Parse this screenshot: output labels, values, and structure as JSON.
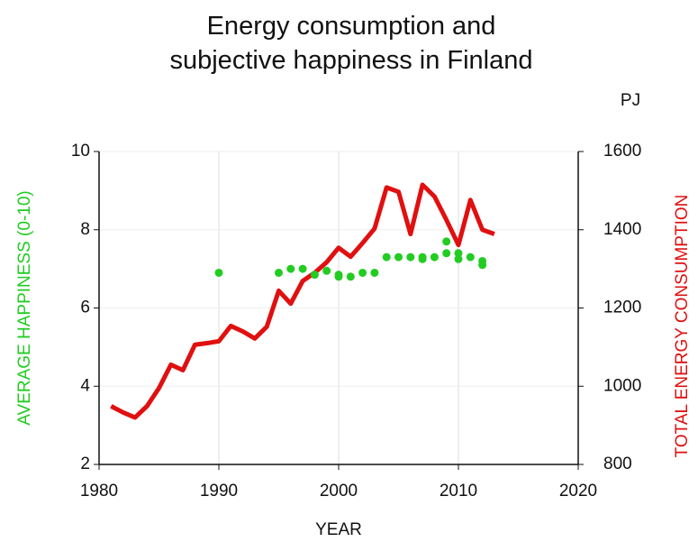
{
  "chart_data": {
    "type": "line_scatter",
    "title": "Energy consumption and subjective happiness in Finland",
    "xlabel": "YEAR",
    "ylabel": "AVERAGE HAPPINESS (0-10)",
    "y2label": "TOTAL ENERGY CONSUMPTION",
    "y2unit": "PJ",
    "xlim": [
      1980,
      2020
    ],
    "xticks": [
      1980,
      1990,
      2000,
      2010,
      2020
    ],
    "ylim": [
      2,
      10
    ],
    "yticks": [
      2,
      4,
      6,
      8,
      10
    ],
    "y2lim": [
      800,
      1600
    ],
    "y2ticks": [
      800,
      1000,
      1200,
      1400,
      1600
    ],
    "grid": true,
    "series": [
      {
        "name": "TOTAL ENERGY CONSUMPTION",
        "type": "line",
        "axis": "y2",
        "color": "#e01010",
        "x": [
          1981,
          1982,
          1983,
          1984,
          1985,
          1986,
          1987,
          1988,
          1989,
          1990,
          1991,
          1992,
          1993,
          1994,
          1995,
          1996,
          1997,
          1998,
          1999,
          2000,
          2001,
          2002,
          2003,
          2004,
          2005,
          2006,
          2007,
          2008,
          2009,
          2010,
          2011,
          2012,
          2013
        ],
        "values": [
          949,
          933,
          920,
          949,
          995,
          1055,
          1041,
          1106,
          1110,
          1115,
          1154,
          1140,
          1122,
          1152,
          1244,
          1211,
          1269,
          1290,
          1317,
          1354,
          1331,
          1366,
          1403,
          1508,
          1497,
          1389,
          1515,
          1485,
          1425,
          1361,
          1476,
          1400,
          1389
        ]
      },
      {
        "name": "AVERAGE HAPPINESS (0-10)",
        "type": "scatter",
        "axis": "y",
        "color": "#22cc22",
        "x": [
          1990,
          1995,
          1996,
          1997,
          1998,
          1999,
          2000,
          2000,
          2001,
          2002,
          2003,
          2004,
          2005,
          2006,
          2007,
          2007,
          2008,
          2009,
          2009,
          2010,
          2010,
          2011,
          2012,
          2012
        ],
        "values": [
          6.9,
          6.9,
          7.0,
          7.0,
          6.85,
          6.95,
          6.8,
          6.85,
          6.8,
          6.9,
          6.9,
          7.3,
          7.3,
          7.3,
          7.25,
          7.3,
          7.3,
          7.7,
          7.4,
          7.4,
          7.25,
          7.3,
          7.2,
          7.1
        ]
      }
    ]
  }
}
